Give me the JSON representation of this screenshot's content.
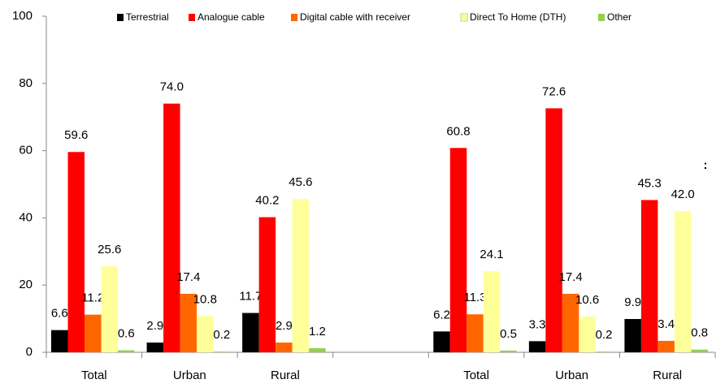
{
  "chart_data": {
    "type": "bar",
    "annotation": ":",
    "categories": [
      "Total",
      "Urban",
      "Rural",
      null,
      "Total",
      "Urban",
      "Rural"
    ],
    "series": [
      {
        "name": "Terrestrial",
        "color": "#000000",
        "values": [
          6.6,
          2.9,
          11.7,
          null,
          6.2,
          3.3,
          9.9
        ],
        "value_labels": [
          "6.6",
          "2.9",
          "11.7",
          null,
          "6.2",
          "3.3",
          "9.9"
        ]
      },
      {
        "name": "Analogue cable",
        "color": "#ff0000",
        "values": [
          59.6,
          74.0,
          40.2,
          null,
          60.8,
          72.6,
          45.3
        ],
        "value_labels": [
          "59.6",
          "74.0",
          "40.2",
          null,
          "60.8",
          "72.6",
          "45.3"
        ]
      },
      {
        "name": "Digital cable with receiver",
        "color": "#ff6600",
        "values": [
          11.2,
          17.4,
          2.9,
          null,
          11.3,
          17.4,
          3.4
        ],
        "value_labels": [
          "11.2",
          "17.4",
          "2.9",
          null,
          "11.3",
          "17.4",
          "3.4"
        ]
      },
      {
        "name": "Direct To Home (DTH)",
        "color": "#ffff99",
        "values": [
          25.6,
          10.8,
          45.6,
          null,
          24.1,
          10.6,
          42.0
        ],
        "value_labels": [
          "25.6",
          "10.8",
          "45.6",
          null,
          "24.1",
          "10.6",
          "42.0"
        ]
      },
      {
        "name": "Other",
        "color": "#92d050",
        "values": [
          0.6,
          0.2,
          1.2,
          null,
          0.5,
          0.2,
          0.8
        ],
        "value_labels": [
          "0.6",
          "0.2",
          "1.2",
          null,
          "0.5",
          "0.2",
          "0.8"
        ]
      }
    ],
    "ylim": [
      0,
      100
    ],
    "yticks": [
      0,
      20,
      40,
      60,
      80,
      100
    ],
    "grid": false,
    "legend": "top"
  }
}
